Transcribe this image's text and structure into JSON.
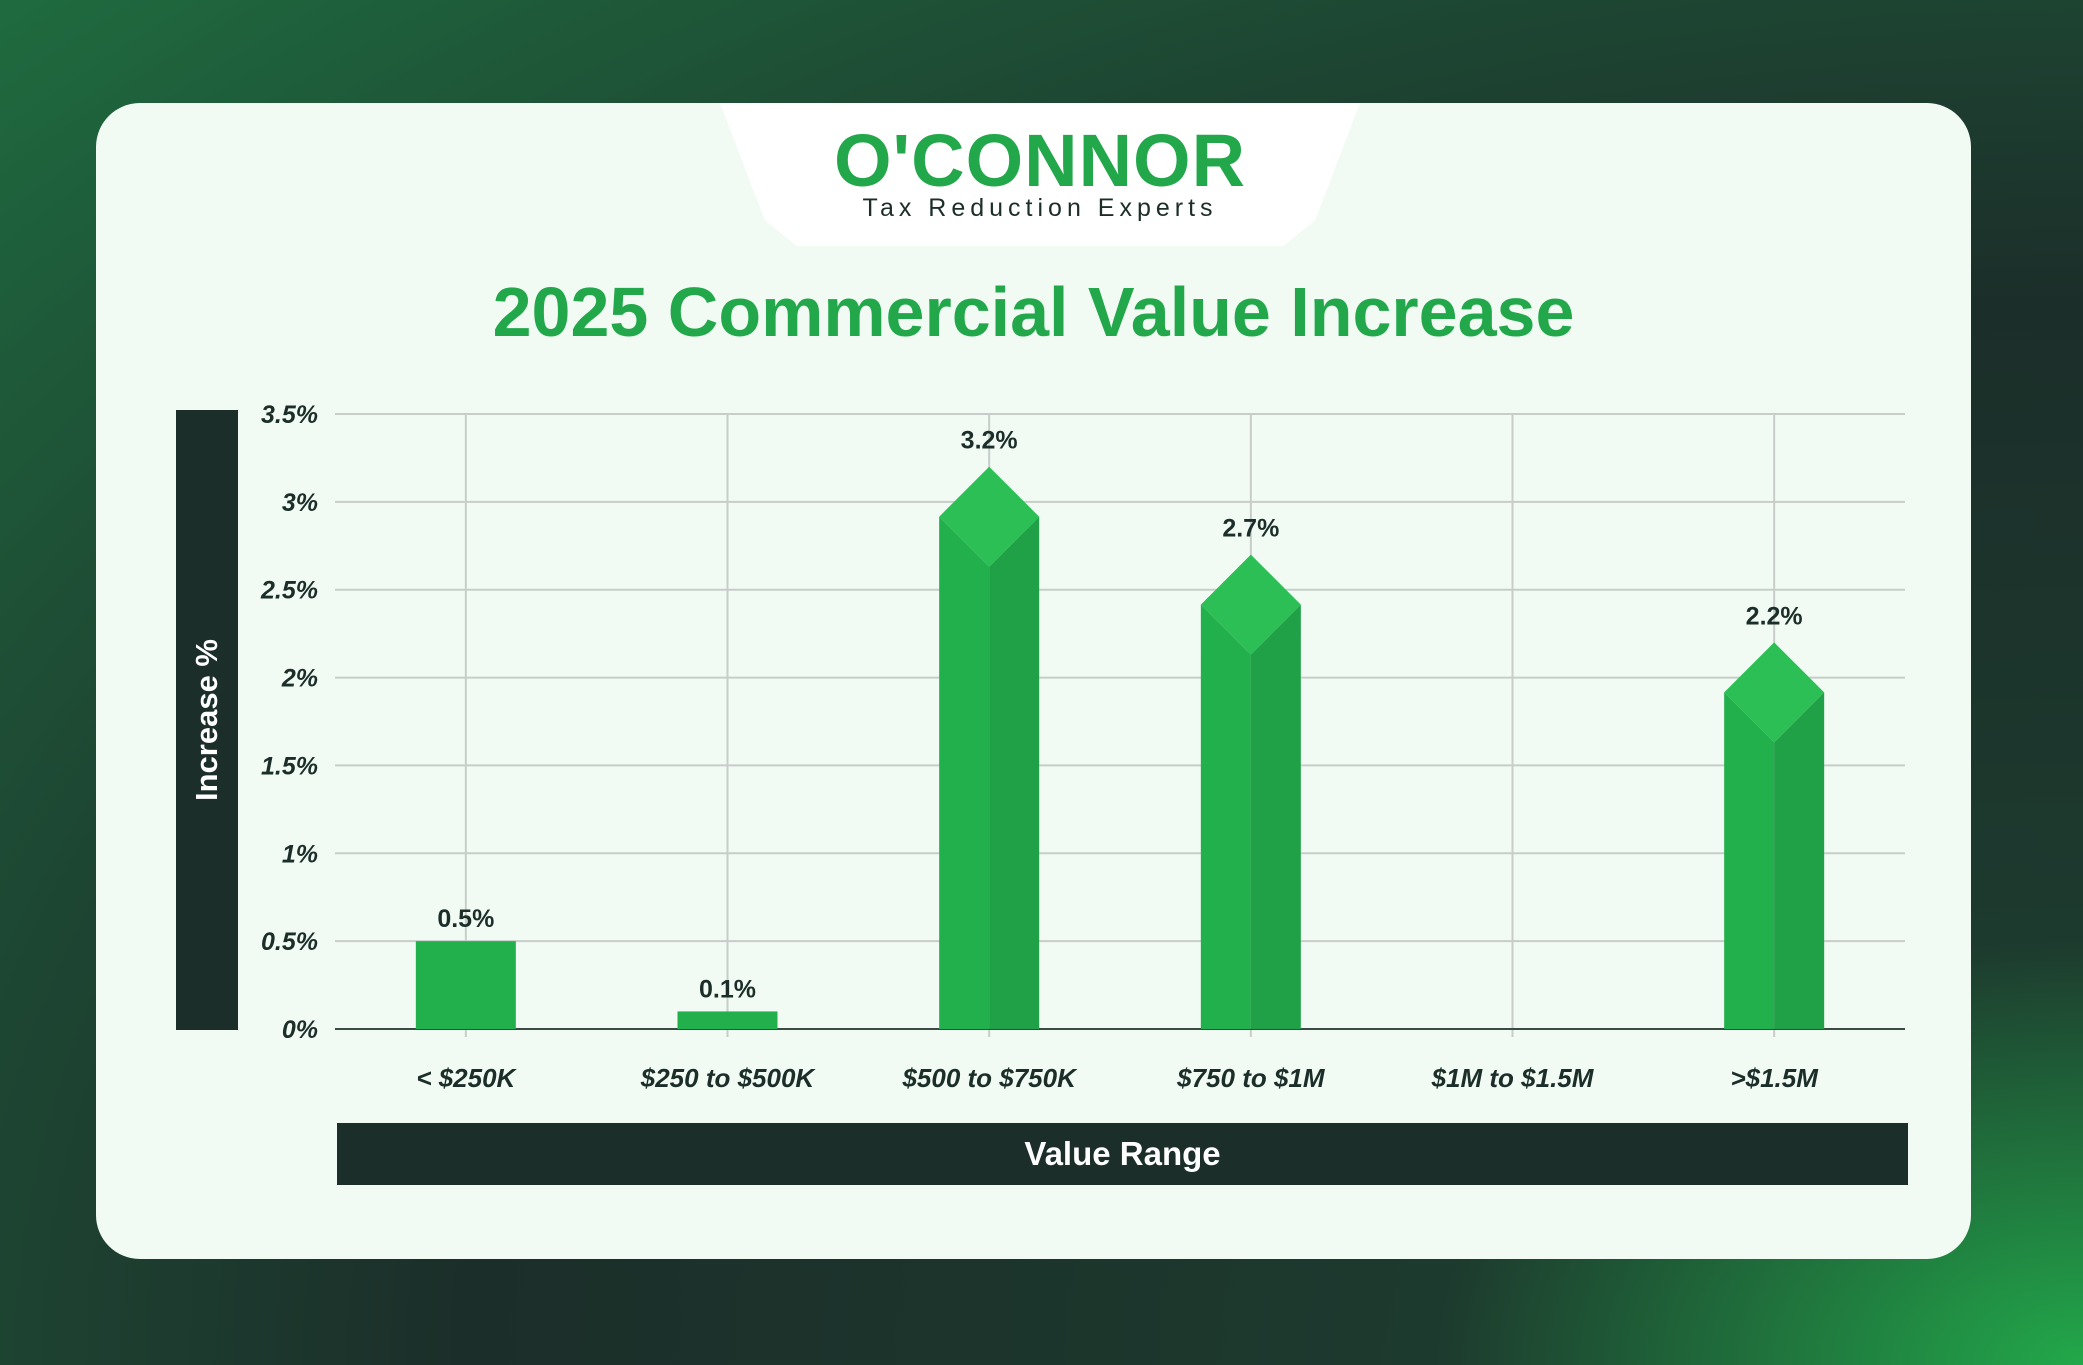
{
  "logo": {
    "brand": "O'CONNOR",
    "tagline": "Tax Reduction Experts"
  },
  "chart_data": {
    "type": "bar",
    "title": "2025 Commercial Value Increase",
    "xlabel": "Value Range",
    "ylabel": "Increase %",
    "categories": [
      "< $250K",
      "$250 to $500K",
      "$500 to $750K",
      "$750 to $1M",
      "$1M to $1.5M",
      ">$1.5M"
    ],
    "values": [
      0.5,
      0.1,
      3.2,
      2.7,
      null,
      2.2
    ],
    "data_labels": [
      "0.5%",
      "0.1%",
      "3.2%",
      "2.7%",
      "",
      "2.2%"
    ],
    "ylim": [
      0,
      3.5
    ],
    "yticks": [
      0,
      0.5,
      1,
      1.5,
      2,
      2.5,
      3,
      3.5
    ],
    "ytick_labels": [
      "0%",
      "0.5%",
      "1%",
      "1.5%",
      "2%",
      "2.5%",
      "3%",
      "3.5%"
    ],
    "grid": true,
    "colors": {
      "bar": "#22b04c",
      "bar_dark": "#20a047",
      "bar_top": "#2bbf55",
      "dark": "#1c2e2a",
      "grid": "#c8cdca"
    }
  }
}
